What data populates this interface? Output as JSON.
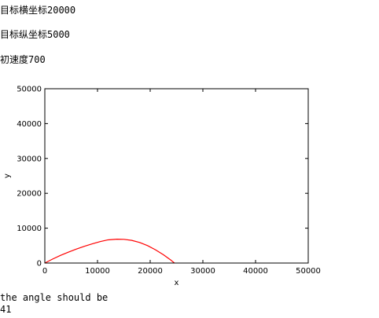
{
  "output": {
    "lines": [
      "目标横坐标20000",
      "目标纵坐标5000",
      "初速度700"
    ],
    "result_label": "the angle should be",
    "result_value": "41"
  },
  "chart_data": {
    "type": "line",
    "title": "",
    "xlabel": "x",
    "ylabel": "y",
    "xlim": [
      0,
      50000
    ],
    "ylim": [
      0,
      50000
    ],
    "xticks": [
      0,
      10000,
      20000,
      30000,
      40000,
      50000
    ],
    "yticks": [
      0,
      10000,
      20000,
      30000,
      40000,
      50000
    ],
    "grid": false,
    "legend": "none",
    "series": [
      {
        "color": "#ff0000",
        "x": [
          0,
          1500,
          3000,
          4500,
          6000,
          7500,
          9000,
          10500,
          12000,
          13700,
          15000,
          16500,
          18000,
          19500,
          21000,
          22500,
          24000,
          24600
        ],
        "y": [
          0,
          1150,
          2200,
          3150,
          4000,
          4800,
          5500,
          6150,
          6650,
          6850,
          6800,
          6500,
          5900,
          5000,
          3800,
          2400,
          750,
          0
        ]
      }
    ]
  }
}
